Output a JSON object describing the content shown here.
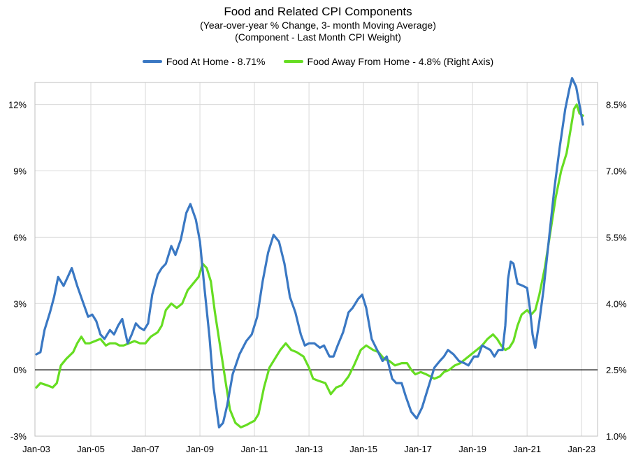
{
  "chart_data": {
    "type": "line",
    "title": "Food  and Related CPI Components",
    "subtitle_lines": [
      "(Year-over-year % Change, 3- month Moving Average)",
      "(Component - Last Month CPI Weight)"
    ],
    "x_tick_labels": [
      "Jan-03",
      "Jan-05",
      "Jan-07",
      "Jan-09",
      "Jan-11",
      "Jan-13",
      "Jan-15",
      "Jan-17",
      "Jan-19",
      "Jan-21",
      "Jan-23"
    ],
    "x_range": [
      2003.0,
      2023.2
    ],
    "y_left": {
      "range": [
        -3,
        13
      ],
      "ticks": [
        -3,
        0,
        3,
        6,
        9,
        12
      ],
      "labels": [
        "-3%",
        "0%",
        "3%",
        "6%",
        "9%",
        "12%"
      ]
    },
    "y_right": {
      "range": [
        1.0,
        9.0
      ],
      "ticks": [
        1.0,
        2.5,
        4.0,
        5.5,
        7.0,
        8.5
      ],
      "labels": [
        "1.0%",
        "2.5%",
        "4.0%",
        "5.5%",
        "7.0%",
        "8.5%"
      ]
    },
    "grid": true,
    "series": [
      {
        "name": "Food At Home - 8.71%",
        "axis": "left",
        "color": "#3a78c3",
        "points": [
          [
            2003.0,
            0.7
          ],
          [
            2003.15,
            0.8
          ],
          [
            2003.3,
            1.8
          ],
          [
            2003.5,
            2.6
          ],
          [
            2003.65,
            3.3
          ],
          [
            2003.8,
            4.2
          ],
          [
            2004.0,
            3.8
          ],
          [
            2004.15,
            4.2
          ],
          [
            2004.3,
            4.6
          ],
          [
            2004.5,
            3.8
          ],
          [
            2004.7,
            3.1
          ],
          [
            2004.9,
            2.4
          ],
          [
            2005.05,
            2.5
          ],
          [
            2005.2,
            2.2
          ],
          [
            2005.35,
            1.6
          ],
          [
            2005.5,
            1.4
          ],
          [
            2005.7,
            1.8
          ],
          [
            2005.85,
            1.6
          ],
          [
            2006.0,
            2.0
          ],
          [
            2006.15,
            2.3
          ],
          [
            2006.35,
            1.2
          ],
          [
            2006.5,
            1.6
          ],
          [
            2006.65,
            2.1
          ],
          [
            2006.8,
            1.9
          ],
          [
            2006.95,
            1.8
          ],
          [
            2007.1,
            2.1
          ],
          [
            2007.25,
            3.4
          ],
          [
            2007.45,
            4.3
          ],
          [
            2007.6,
            4.6
          ],
          [
            2007.75,
            4.8
          ],
          [
            2007.95,
            5.6
          ],
          [
            2008.1,
            5.2
          ],
          [
            2008.3,
            5.9
          ],
          [
            2008.5,
            7.1
          ],
          [
            2008.65,
            7.5
          ],
          [
            2008.85,
            6.8
          ],
          [
            2009.0,
            5.8
          ],
          [
            2009.15,
            3.9
          ],
          [
            2009.35,
            1.5
          ],
          [
            2009.5,
            -0.8
          ],
          [
            2009.7,
            -2.6
          ],
          [
            2009.85,
            -2.4
          ],
          [
            2010.0,
            -1.6
          ],
          [
            2010.2,
            -0.2
          ],
          [
            2010.45,
            0.7
          ],
          [
            2010.7,
            1.3
          ],
          [
            2010.9,
            1.6
          ],
          [
            2011.1,
            2.4
          ],
          [
            2011.3,
            4.0
          ],
          [
            2011.5,
            5.3
          ],
          [
            2011.7,
            6.1
          ],
          [
            2011.9,
            5.8
          ],
          [
            2012.1,
            4.8
          ],
          [
            2012.3,
            3.3
          ],
          [
            2012.5,
            2.6
          ],
          [
            2012.7,
            1.6
          ],
          [
            2012.85,
            1.1
          ],
          [
            2013.0,
            1.2
          ],
          [
            2013.2,
            1.2
          ],
          [
            2013.4,
            1.0
          ],
          [
            2013.55,
            1.1
          ],
          [
            2013.75,
            0.6
          ],
          [
            2013.9,
            0.6
          ],
          [
            2014.05,
            1.1
          ],
          [
            2014.25,
            1.7
          ],
          [
            2014.45,
            2.6
          ],
          [
            2014.6,
            2.8
          ],
          [
            2014.8,
            3.2
          ],
          [
            2014.95,
            3.4
          ],
          [
            2015.1,
            2.8
          ],
          [
            2015.3,
            1.4
          ],
          [
            2015.5,
            0.9
          ],
          [
            2015.7,
            0.4
          ],
          [
            2015.85,
            0.6
          ],
          [
            2016.05,
            -0.4
          ],
          [
            2016.2,
            -0.6
          ],
          [
            2016.4,
            -0.6
          ],
          [
            2016.55,
            -1.2
          ],
          [
            2016.75,
            -1.9
          ],
          [
            2016.95,
            -2.2
          ],
          [
            2017.15,
            -1.7
          ],
          [
            2017.3,
            -1.1
          ],
          [
            2017.45,
            -0.5
          ],
          [
            2017.6,
            0.1
          ],
          [
            2017.8,
            0.4
          ],
          [
            2017.95,
            0.6
          ],
          [
            2018.1,
            0.9
          ],
          [
            2018.3,
            0.7
          ],
          [
            2018.5,
            0.4
          ],
          [
            2018.7,
            0.3
          ],
          [
            2018.85,
            0.2
          ],
          [
            2019.05,
            0.6
          ],
          [
            2019.2,
            0.6
          ],
          [
            2019.35,
            1.1
          ],
          [
            2019.5,
            1.0
          ],
          [
            2019.65,
            0.9
          ],
          [
            2019.8,
            0.6
          ],
          [
            2019.95,
            0.9
          ],
          [
            2020.1,
            0.9
          ],
          [
            2020.2,
            2.0
          ],
          [
            2020.3,
            4.1
          ],
          [
            2020.4,
            4.9
          ],
          [
            2020.5,
            4.8
          ],
          [
            2020.65,
            3.9
          ],
          [
            2020.85,
            3.8
          ],
          [
            2021.0,
            3.7
          ],
          [
            2021.1,
            2.8
          ],
          [
            2021.2,
            1.6
          ],
          [
            2021.3,
            1.0
          ],
          [
            2021.45,
            2.2
          ],
          [
            2021.6,
            3.6
          ],
          [
            2021.8,
            5.9
          ],
          [
            2022.0,
            8.2
          ],
          [
            2022.2,
            10.1
          ],
          [
            2022.4,
            11.8
          ],
          [
            2022.55,
            12.7
          ],
          [
            2022.65,
            13.2
          ],
          [
            2022.8,
            12.8
          ],
          [
            2022.95,
            11.8
          ],
          [
            2023.05,
            11.1
          ]
        ]
      },
      {
        "name": "Food Away From Home - 4.8% (Right Axis)",
        "axis": "right",
        "color": "#66dd22",
        "points": [
          [
            2003.0,
            2.1
          ],
          [
            2003.15,
            2.2
          ],
          [
            2003.4,
            2.15
          ],
          [
            2003.6,
            2.1
          ],
          [
            2003.75,
            2.2
          ],
          [
            2003.9,
            2.6
          ],
          [
            2004.1,
            2.75
          ],
          [
            2004.35,
            2.9
          ],
          [
            2004.5,
            3.1
          ],
          [
            2004.65,
            3.25
          ],
          [
            2004.8,
            3.1
          ],
          [
            2004.95,
            3.1
          ],
          [
            2005.15,
            3.15
          ],
          [
            2005.35,
            3.2
          ],
          [
            2005.55,
            3.05
          ],
          [
            2005.7,
            3.1
          ],
          [
            2005.9,
            3.1
          ],
          [
            2006.05,
            3.05
          ],
          [
            2006.2,
            3.05
          ],
          [
            2006.4,
            3.1
          ],
          [
            2006.6,
            3.15
          ],
          [
            2006.8,
            3.1
          ],
          [
            2007.0,
            3.1
          ],
          [
            2007.2,
            3.25
          ],
          [
            2007.45,
            3.35
          ],
          [
            2007.6,
            3.5
          ],
          [
            2007.75,
            3.85
          ],
          [
            2007.95,
            4.0
          ],
          [
            2008.15,
            3.9
          ],
          [
            2008.35,
            4.0
          ],
          [
            2008.55,
            4.3
          ],
          [
            2008.75,
            4.45
          ],
          [
            2008.95,
            4.6
          ],
          [
            2009.1,
            4.9
          ],
          [
            2009.25,
            4.8
          ],
          [
            2009.4,
            4.5
          ],
          [
            2009.55,
            3.8
          ],
          [
            2009.75,
            3.0
          ],
          [
            2009.95,
            2.2
          ],
          [
            2010.1,
            1.6
          ],
          [
            2010.3,
            1.3
          ],
          [
            2010.5,
            1.2
          ],
          [
            2010.7,
            1.25
          ],
          [
            2010.85,
            1.3
          ],
          [
            2011.0,
            1.35
          ],
          [
            2011.15,
            1.5
          ],
          [
            2011.35,
            2.1
          ],
          [
            2011.55,
            2.55
          ],
          [
            2011.75,
            2.75
          ],
          [
            2011.95,
            2.95
          ],
          [
            2012.15,
            3.1
          ],
          [
            2012.35,
            2.95
          ],
          [
            2012.55,
            2.9
          ],
          [
            2012.8,
            2.8
          ],
          [
            2013.0,
            2.55
          ],
          [
            2013.15,
            2.3
          ],
          [
            2013.35,
            2.25
          ],
          [
            2013.6,
            2.2
          ],
          [
            2013.8,
            1.95
          ],
          [
            2014.0,
            2.1
          ],
          [
            2014.2,
            2.15
          ],
          [
            2014.45,
            2.35
          ],
          [
            2014.65,
            2.6
          ],
          [
            2014.9,
            2.95
          ],
          [
            2015.1,
            3.05
          ],
          [
            2015.35,
            2.95
          ],
          [
            2015.55,
            2.9
          ],
          [
            2015.75,
            2.75
          ],
          [
            2015.95,
            2.7
          ],
          [
            2016.15,
            2.6
          ],
          [
            2016.4,
            2.65
          ],
          [
            2016.6,
            2.65
          ],
          [
            2016.75,
            2.5
          ],
          [
            2016.9,
            2.4
          ],
          [
            2017.1,
            2.45
          ],
          [
            2017.3,
            2.4
          ],
          [
            2017.45,
            2.35
          ],
          [
            2017.6,
            2.3
          ],
          [
            2017.8,
            2.35
          ],
          [
            2017.95,
            2.45
          ],
          [
            2018.15,
            2.5
          ],
          [
            2018.35,
            2.6
          ],
          [
            2018.55,
            2.65
          ],
          [
            2018.75,
            2.75
          ],
          [
            2018.95,
            2.85
          ],
          [
            2019.15,
            2.95
          ],
          [
            2019.35,
            3.05
          ],
          [
            2019.55,
            3.2
          ],
          [
            2019.75,
            3.3
          ],
          [
            2019.9,
            3.2
          ],
          [
            2020.05,
            3.05
          ],
          [
            2020.2,
            2.95
          ],
          [
            2020.35,
            3.0
          ],
          [
            2020.5,
            3.15
          ],
          [
            2020.65,
            3.5
          ],
          [
            2020.8,
            3.75
          ],
          [
            2021.0,
            3.85
          ],
          [
            2021.15,
            3.75
          ],
          [
            2021.3,
            3.85
          ],
          [
            2021.45,
            4.2
          ],
          [
            2021.65,
            4.8
          ],
          [
            2021.85,
            5.6
          ],
          [
            2022.05,
            6.4
          ],
          [
            2022.25,
            7.0
          ],
          [
            2022.45,
            7.4
          ],
          [
            2022.6,
            7.95
          ],
          [
            2022.72,
            8.4
          ],
          [
            2022.82,
            8.5
          ],
          [
            2022.92,
            8.3
          ],
          [
            2023.05,
            8.25
          ]
        ]
      }
    ]
  }
}
